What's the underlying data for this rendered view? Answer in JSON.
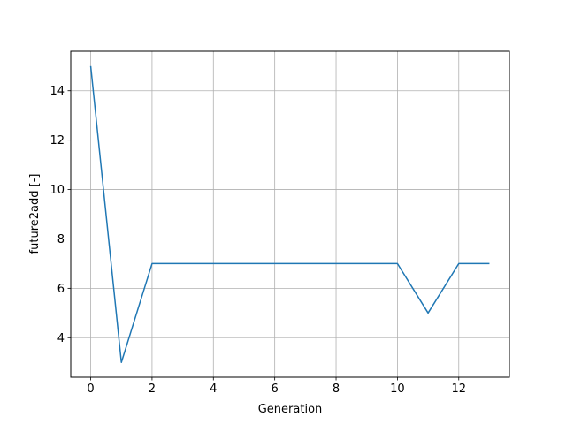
{
  "chart_data": {
    "type": "line",
    "title": "",
    "xlabel": "Generation",
    "ylabel": "future2add [-]",
    "xlim": [
      -0.65,
      13.65
    ],
    "ylim": [
      2.4,
      15.6
    ],
    "xticks": [
      0,
      2,
      4,
      6,
      8,
      10,
      12
    ],
    "yticks": [
      4,
      6,
      8,
      10,
      12,
      14
    ],
    "grid": true,
    "legend": "none",
    "series": [
      {
        "color": "#1f77b4",
        "x": [
          0,
          1,
          2,
          3,
          4,
          5,
          6,
          7,
          8,
          9,
          10,
          11,
          12,
          13
        ],
        "y": [
          15,
          3,
          7,
          7,
          7,
          7,
          7,
          7,
          7,
          7,
          7,
          5,
          7,
          7
        ]
      }
    ]
  }
}
